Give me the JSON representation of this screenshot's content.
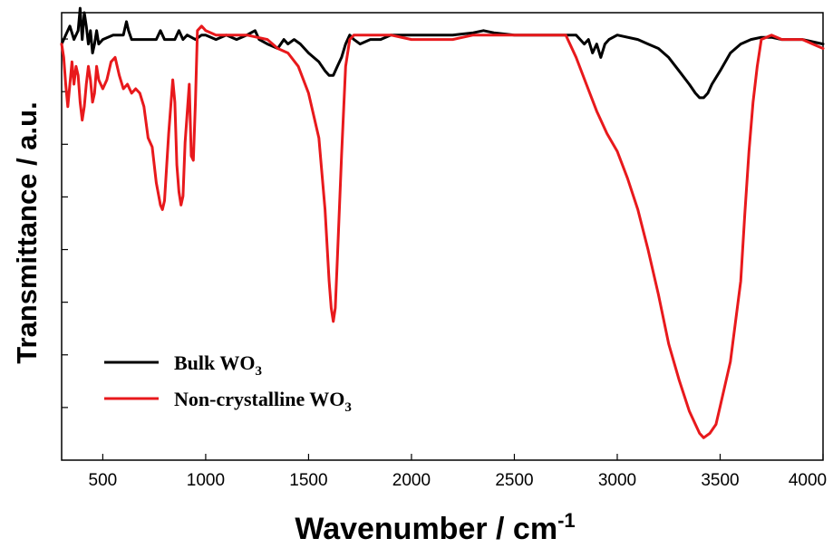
{
  "chart_data": {
    "type": "line",
    "title": "",
    "xlabel": "Wavenumber / cm",
    "xlabel_superscript": "-1",
    "ylabel": "Transmittance / a.u.",
    "xlim": [
      300,
      4000
    ],
    "ylim": [
      0,
      100
    ],
    "x_ticks": [
      500,
      1000,
      1500,
      2000,
      2500,
      3000,
      3500,
      4000
    ],
    "x_tick_labels": [
      "500",
      "1000",
      "1500",
      "2000",
      "2500",
      "3000",
      "3500",
      "4000"
    ],
    "y_ticks_count": 8,
    "y_tick_labels_shown": false,
    "grid": false,
    "legend_position": "bottom-left",
    "series": [
      {
        "name": "Bulk WO",
        "name_subscript": "3",
        "color": "#000000",
        "x": [
          300,
          320,
          340,
          360,
          380,
          390,
          400,
          410,
          420,
          430,
          440,
          450,
          460,
          470,
          480,
          500,
          550,
          600,
          615,
          625,
          640,
          700,
          760,
          780,
          800,
          850,
          870,
          890,
          910,
          950,
          980,
          1000,
          1050,
          1100,
          1150,
          1200,
          1240,
          1260,
          1300,
          1350,
          1380,
          1400,
          1430,
          1460,
          1500,
          1550,
          1580,
          1600,
          1620,
          1640,
          1660,
          1680,
          1700,
          1720,
          1750,
          1800,
          1850,
          1900,
          2000,
          2100,
          2200,
          2300,
          2350,
          2400,
          2500,
          2600,
          2700,
          2800,
          2840,
          2860,
          2880,
          2900,
          2920,
          2940,
          2960,
          3000,
          3100,
          3150,
          3200,
          3250,
          3300,
          3350,
          3380,
          3400,
          3420,
          3440,
          3460,
          3500,
          3550,
          3600,
          3650,
          3700,
          3750,
          3800,
          3850,
          3900,
          3950,
          4000
        ],
        "y": [
          93,
          95,
          97,
          94,
          96,
          101,
          94,
          100,
          97,
          93,
          96,
          91,
          93,
          96,
          93,
          94,
          95,
          95,
          98,
          96,
          94,
          94,
          94,
          96,
          94,
          94,
          96,
          94,
          95,
          94,
          95,
          95,
          94,
          95,
          94,
          95,
          96,
          94,
          93,
          92,
          94,
          93,
          94,
          93,
          91,
          89,
          87,
          86,
          86,
          88,
          90,
          93,
          95,
          94,
          93,
          94,
          94,
          95,
          95,
          95,
          95,
          95.5,
          96,
          95.5,
          95,
          95,
          95,
          95,
          93,
          94,
          91,
          93,
          90,
          93,
          94,
          95,
          94,
          93,
          92,
          90,
          87,
          84,
          82,
          81,
          81,
          82,
          84,
          87,
          91,
          93,
          94,
          94.5,
          94.5,
          94,
          94,
          94,
          93.5,
          93
        ]
      },
      {
        "name": "Non-crystalline WO",
        "name_subscript": "3",
        "color": "#e8191c",
        "x": [
          300,
          310,
          320,
          330,
          340,
          350,
          360,
          370,
          380,
          390,
          400,
          410,
          420,
          430,
          440,
          450,
          460,
          470,
          480,
          500,
          520,
          540,
          560,
          580,
          600,
          620,
          640,
          660,
          680,
          700,
          720,
          740,
          760,
          780,
          790,
          800,
          820,
          840,
          850,
          860,
          870,
          880,
          890,
          900,
          920,
          930,
          940,
          950,
          960,
          980,
          1000,
          1050,
          1100,
          1200,
          1300,
          1350,
          1400,
          1450,
          1500,
          1550,
          1580,
          1600,
          1610,
          1620,
          1630,
          1640,
          1660,
          1680,
          1700,
          1720,
          1750,
          1800,
          1900,
          2000,
          2100,
          2200,
          2300,
          2400,
          2500,
          2600,
          2700,
          2750,
          2800,
          2850,
          2900,
          2950,
          3000,
          3050,
          3100,
          3150,
          3200,
          3250,
          3300,
          3350,
          3380,
          3400,
          3420,
          3450,
          3480,
          3500,
          3550,
          3600,
          3620,
          3640,
          3660,
          3680,
          3700,
          3750,
          3800,
          3850,
          3900,
          3950,
          4000
        ],
        "y": [
          93,
          90,
          84,
          79,
          84,
          89,
          84,
          88,
          86,
          80,
          76,
          79,
          84,
          88,
          85,
          80,
          82,
          88,
          85,
          83,
          85,
          89,
          90,
          86,
          83,
          84,
          82,
          83,
          82,
          79,
          72,
          70,
          62,
          57,
          56,
          58,
          73,
          85,
          80,
          66,
          60,
          57,
          59,
          71,
          84,
          68,
          67,
          80,
          96,
          97,
          96,
          95,
          95,
          95,
          94,
          92,
          91,
          88,
          82,
          72,
          56,
          40,
          34,
          31,
          34,
          45,
          68,
          88,
          94,
          95,
          95,
          95,
          95,
          94,
          94,
          94,
          95,
          95,
          95,
          95,
          95,
          95,
          90,
          84,
          78,
          73,
          69,
          63,
          56,
          47,
          37,
          26,
          18,
          11,
          8,
          6,
          5,
          6,
          8,
          12,
          22,
          40,
          55,
          69,
          80,
          88,
          94,
          95,
          94,
          94,
          94,
          93,
          92
        ]
      }
    ]
  }
}
